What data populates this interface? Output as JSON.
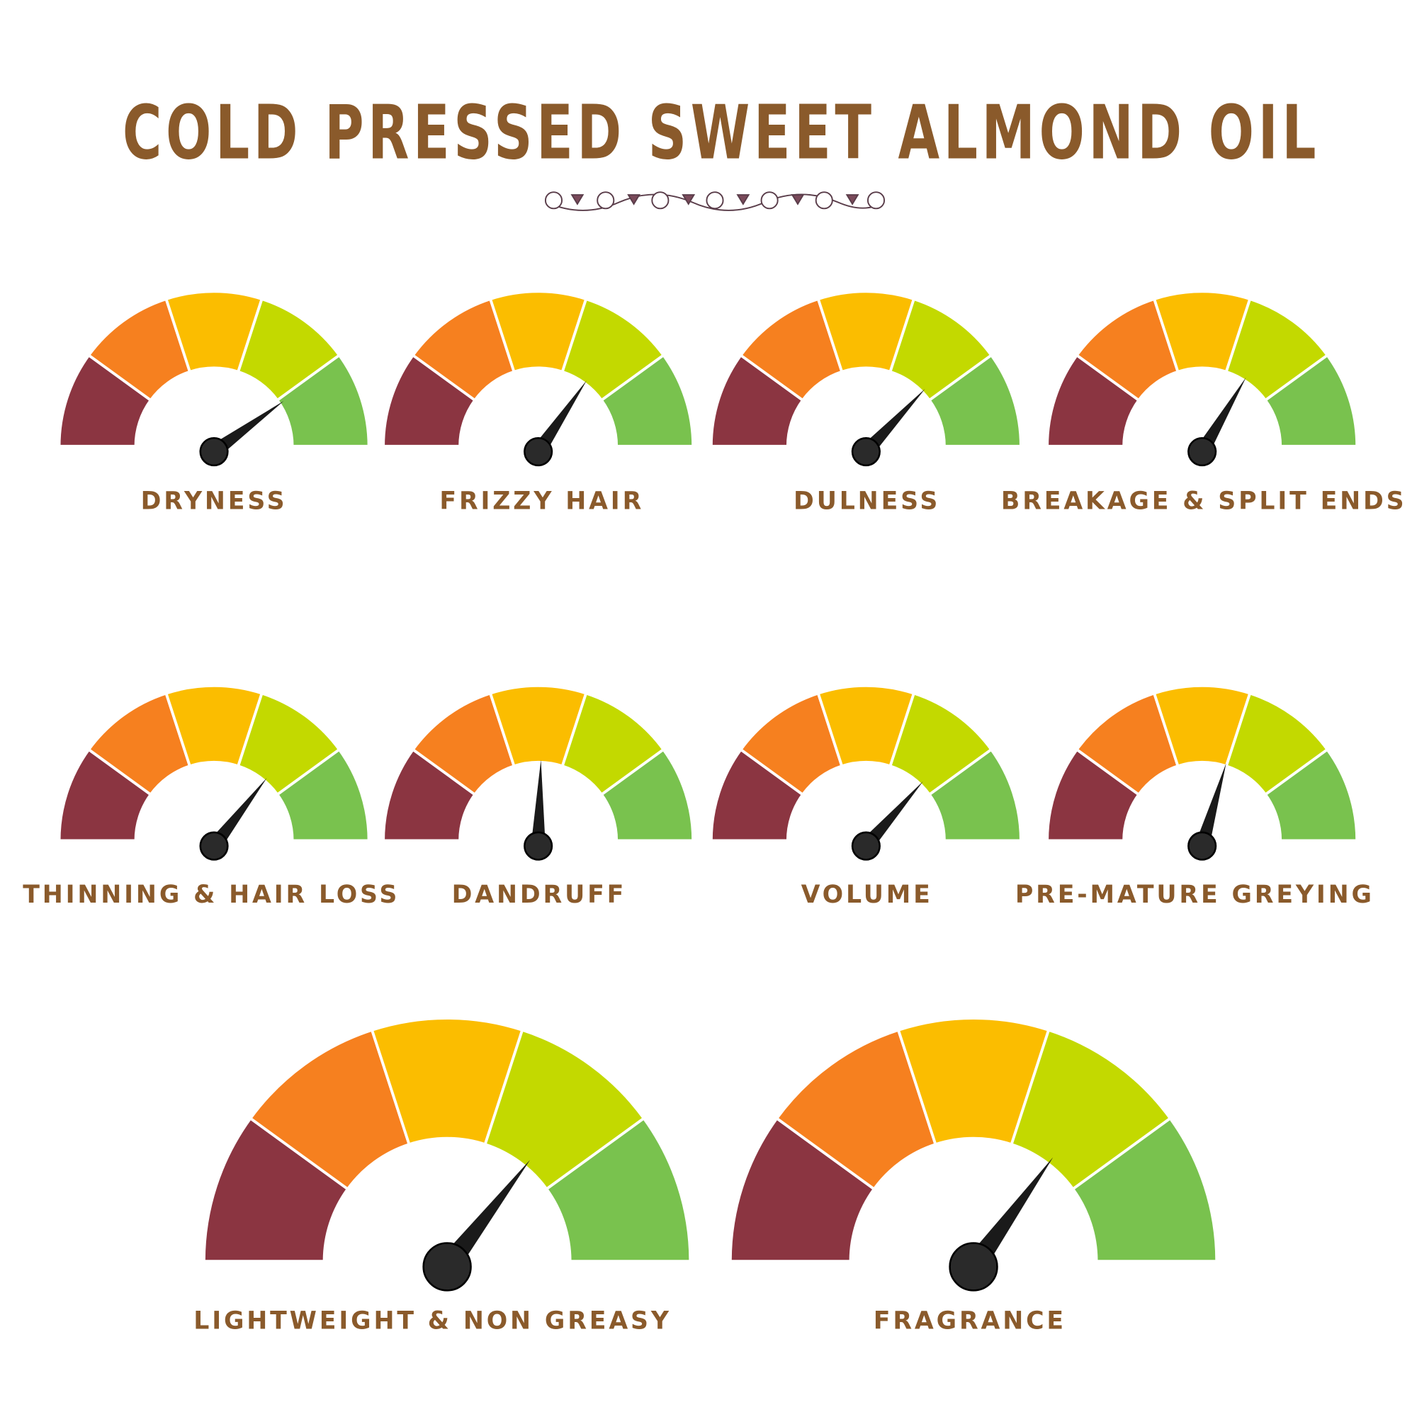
{
  "chart_data": {
    "type": "gauge",
    "title": "COLD PRESSED SWEET ALMOND OIL",
    "scale": [
      0,
      100
    ],
    "colors": [
      "#8b3541",
      "#f6801f",
      "#fbbd00",
      "#c3d900",
      "#79c24e"
    ],
    "gauges": [
      {
        "label": "DRYNESS",
        "value": 80
      },
      {
        "label": "FRIZZY HAIR",
        "value": 69
      },
      {
        "label": "DULNESS",
        "value": 74
      },
      {
        "label": "BREAKAGE & SPLIT ENDS",
        "value": 67
      },
      {
        "label": "THINNING & HAIR LOSS",
        "value": 71
      },
      {
        "label": "DANDRUFF",
        "value": 51
      },
      {
        "label": "VOLUME",
        "value": 73
      },
      {
        "label": "PRE-MATURE GREYING",
        "value": 59
      },
      {
        "label": "LIGHTWEIGHT & NON GREASY",
        "value": 71
      },
      {
        "label": "FRAGRANCE",
        "value": 70
      }
    ]
  }
}
